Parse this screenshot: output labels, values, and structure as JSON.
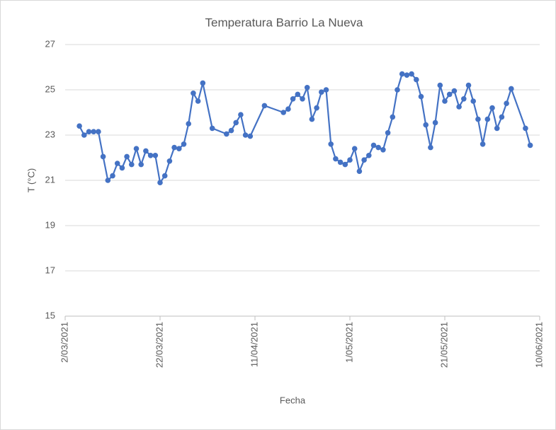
{
  "chart_data": {
    "type": "line",
    "title": "Temperatura  Barrio La Nueva",
    "x_label": "Fecha",
    "y_label": "T (°C)",
    "x": [
      "2021-03-05",
      "2021-03-06",
      "2021-03-07",
      "2021-03-08",
      "2021-03-09",
      "2021-03-10",
      "2021-03-11",
      "2021-03-12",
      "2021-03-13",
      "2021-03-14",
      "2021-03-15",
      "2021-03-16",
      "2021-03-17",
      "2021-03-18",
      "2021-03-19",
      "2021-03-20",
      "2021-03-21",
      "2021-03-22",
      "2021-03-23",
      "2021-03-24",
      "2021-03-25",
      "2021-03-26",
      "2021-03-27",
      "2021-03-28",
      "2021-03-29",
      "2021-03-30",
      "2021-03-31",
      "2021-04-02",
      "2021-04-05",
      "2021-04-06",
      "2021-04-07",
      "2021-04-08",
      "2021-04-09",
      "2021-04-10",
      "2021-04-13",
      "2021-04-17",
      "2021-04-18",
      "2021-04-19",
      "2021-04-20",
      "2021-04-21",
      "2021-04-22",
      "2021-04-23",
      "2021-04-24",
      "2021-04-25",
      "2021-04-26",
      "2021-04-27",
      "2021-04-28",
      "2021-04-29",
      "2021-04-30",
      "2021-05-01",
      "2021-05-02",
      "2021-05-03",
      "2021-05-04",
      "2021-05-05",
      "2021-05-06",
      "2021-05-07",
      "2021-05-08",
      "2021-05-09",
      "2021-05-10",
      "2021-05-11",
      "2021-05-12",
      "2021-05-13",
      "2021-05-14",
      "2021-05-15",
      "2021-05-16",
      "2021-05-17",
      "2021-05-18",
      "2021-05-19",
      "2021-05-20",
      "2021-05-21",
      "2021-05-22",
      "2021-05-23",
      "2021-05-24",
      "2021-05-25",
      "2021-05-26",
      "2021-05-27",
      "2021-05-28",
      "2021-05-29",
      "2021-05-30",
      "2021-05-31",
      "2021-06-01",
      "2021-06-02",
      "2021-06-03",
      "2021-06-04",
      "2021-06-07",
      "2021-06-08"
    ],
    "series": [
      {
        "name": "T",
        "color": "#4472c4",
        "values": [
          23.4,
          23.0,
          23.15,
          23.15,
          23.15,
          22.05,
          21.0,
          21.2,
          21.75,
          21.55,
          22.05,
          21.7,
          22.4,
          21.7,
          22.3,
          22.1,
          22.1,
          20.9,
          21.2,
          21.85,
          22.45,
          22.4,
          22.6,
          23.5,
          24.85,
          24.5,
          25.3,
          23.3,
          23.05,
          23.2,
          23.55,
          23.9,
          23.0,
          22.95,
          24.3,
          24.0,
          24.15,
          24.6,
          24.8,
          24.6,
          25.1,
          23.7,
          24.2,
          24.9,
          25.0,
          22.6,
          21.95,
          21.8,
          21.7,
          21.9,
          22.4,
          21.4,
          21.9,
          22.1,
          22.55,
          22.45,
          22.35,
          23.1,
          23.8,
          25.0,
          25.7,
          25.65,
          25.7,
          25.45,
          24.7,
          23.45,
          22.45,
          23.55,
          25.2,
          24.5,
          24.8,
          24.95,
          24.25,
          24.6,
          25.2,
          24.5,
          23.7,
          22.6,
          23.7,
          24.2,
          23.3,
          23.8,
          24.4,
          25.05,
          23.3,
          22.55
        ]
      }
    ],
    "xlim": [
      "2021-03-02",
      "2021-06-10"
    ],
    "xticks": [
      {
        "value": "2021-03-02",
        "label": "2/03/2021"
      },
      {
        "value": "2021-03-22",
        "label": "22/03/2021"
      },
      {
        "value": "2021-04-11",
        "label": "11/04/2021"
      },
      {
        "value": "2021-05-01",
        "label": "1/05/2021"
      },
      {
        "value": "2021-05-21",
        "label": "21/05/2021"
      },
      {
        "value": "2021-06-10",
        "label": "10/06/2021"
      }
    ],
    "ylim": [
      15,
      27
    ],
    "yticks": [
      15,
      17,
      19,
      21,
      23,
      25,
      27
    ],
    "grid": true
  }
}
